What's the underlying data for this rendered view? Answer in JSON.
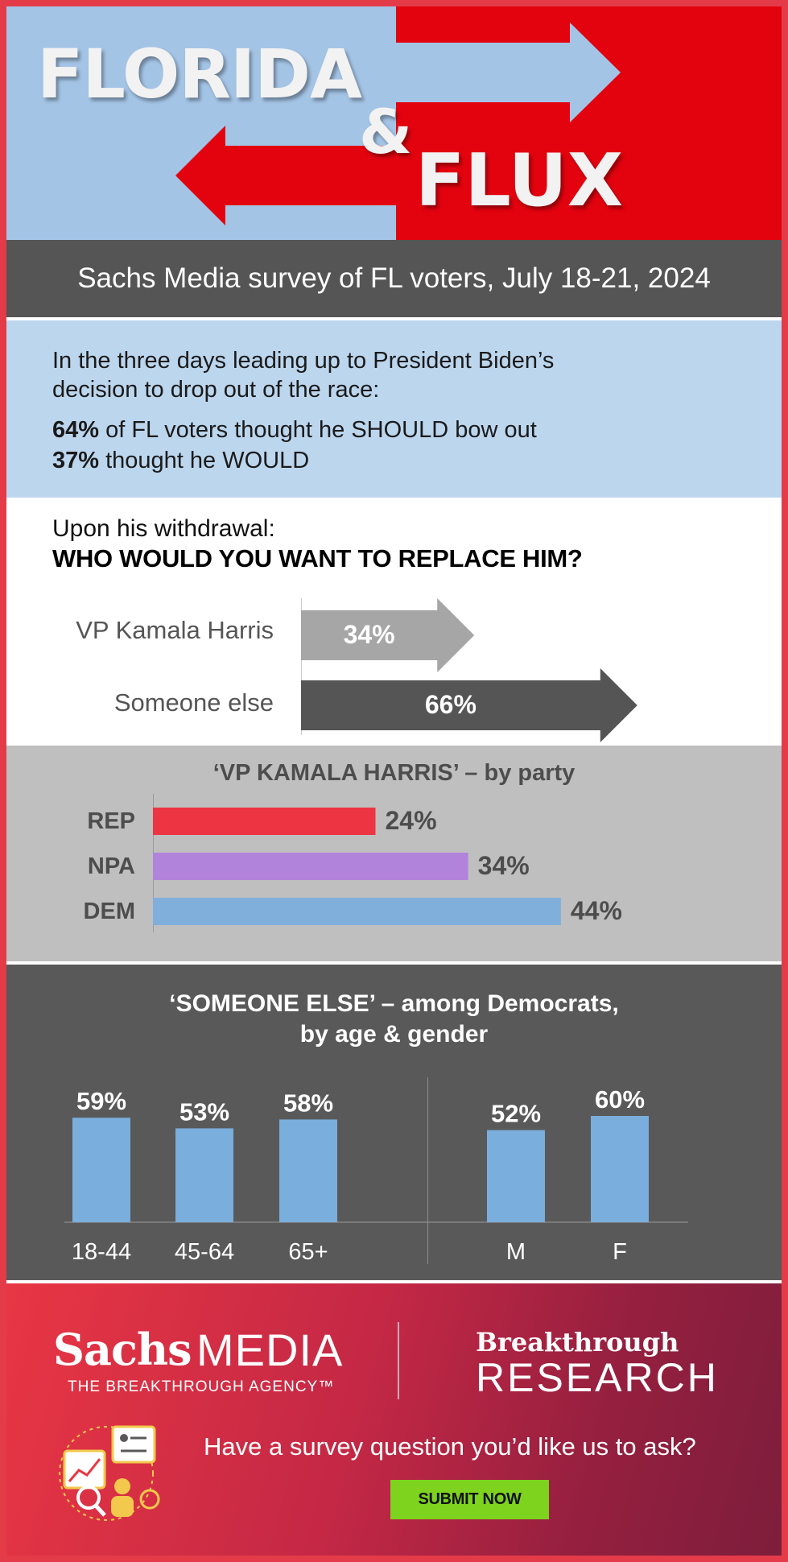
{
  "hero": {
    "word1": "FLORIDA",
    "ampersand": "&",
    "word2": "FLUX",
    "colors": {
      "left": "#a4c4e6",
      "right": "#e2030f"
    }
  },
  "subtitle": "Sachs Media survey of FL voters, July 18-21, 2024",
  "intro": {
    "line1": "In the three days leading up to President Biden’s",
    "line2": "decision to drop out of the race:",
    "stat1": {
      "value": "64%",
      "text": " of FL voters thought he SHOULD bow out"
    },
    "stat2": {
      "value": "37%",
      "text": " thought he WOULD"
    }
  },
  "replace": {
    "pre": "Upon his withdrawal:",
    "question": "WHO WOULD YOU WANT TO REPLACE HIM?"
  },
  "party": {
    "title": "‘VP KAMALA HARRIS’ – by party"
  },
  "agegender": {
    "title_line1": "‘SOMEONE ELSE’ – among Democrats,",
    "title_line2": "by age & gender"
  },
  "chart_data": [
    {
      "type": "bar",
      "title": "WHO WOULD YOU WANT TO REPLACE HIM?",
      "orientation": "horizontal",
      "categories": [
        "VP Kamala Harris",
        "Someone else"
      ],
      "values": [
        34,
        66
      ],
      "value_labels": [
        "34%",
        "66%"
      ],
      "colors": [
        "#a6a6a6",
        "#555555"
      ],
      "xlim": [
        0,
        100
      ]
    },
    {
      "type": "bar",
      "title": "‘VP KAMALA HARRIS’ – by party",
      "orientation": "horizontal",
      "categories": [
        "REP",
        "NPA",
        "DEM"
      ],
      "values": [
        24,
        34,
        44
      ],
      "value_labels": [
        "24%",
        "34%",
        "44%"
      ],
      "colors": [
        "#ed3442",
        "#b283da",
        "#80afdc"
      ],
      "xlim": [
        0,
        50
      ]
    },
    {
      "type": "bar",
      "title": "‘SOMEONE ELSE’ – among Democrats, by age & gender",
      "groups": [
        {
          "name": "age",
          "categories": [
            "18-44",
            "45-64",
            "65+"
          ],
          "values": [
            59,
            53,
            58
          ],
          "value_labels": [
            "59%",
            "53%",
            "58%"
          ]
        },
        {
          "name": "gender",
          "categories": [
            "M",
            "F"
          ],
          "values": [
            52,
            60
          ],
          "value_labels": [
            "52%",
            "60%"
          ]
        }
      ],
      "color": "#7aaedc",
      "ylim": [
        0,
        65
      ]
    }
  ],
  "footer": {
    "sachs_name": "Sachs",
    "sachs_media": "MEDIA",
    "sachs_tagline": "THE BREAKTHROUGH AGENCY™",
    "br_top": "Breakthrough",
    "br_bottom": "RESEARCH",
    "cta_question": "Have a survey question you’d like us to ask?",
    "submit_label": "SUBMIT NOW"
  }
}
